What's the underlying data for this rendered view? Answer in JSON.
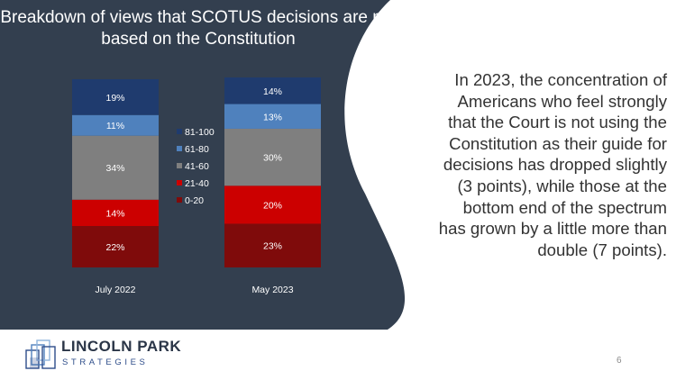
{
  "slide": {
    "title_lines": [
      "Breakdown of views that SCOTUS decisions are not",
      "based on the Constitution"
    ],
    "body_lines": [
      "In 2023, the concentration of",
      "Americans who feel strongly",
      "that the Court is not using the",
      "Constitution as their guide for",
      "decisions has dropped slightly",
      "(3 points), while those at the",
      "bottom end of the spectrum",
      "has grown by a little more than",
      "double (7 points)."
    ],
    "page_number": "6",
    "logo": {
      "name": "LINCOLN PARK",
      "sub": "STRATEGIES"
    },
    "colors": {
      "panel": "#333f4f",
      "text_white": "#ffffff",
      "body_text": "#333333"
    }
  },
  "chart_data": {
    "type": "stacked-bar",
    "title": "Breakdown of views that SCOTUS decisions are not based on the Constitution",
    "categories": [
      "July 2022",
      "May 2023"
    ],
    "series": [
      {
        "name": "0-20",
        "color": "#7f0b0b",
        "values": [
          22,
          23
        ]
      },
      {
        "name": "21-40",
        "color": "#cc0000",
        "values": [
          14,
          20
        ]
      },
      {
        "name": "41-60",
        "color": "#7f7f7f",
        "values": [
          34,
          30
        ]
      },
      {
        "name": "61-80",
        "color": "#4f81bd",
        "values": [
          11,
          13
        ]
      },
      {
        "name": "81-100",
        "color": "#1f3b6e",
        "values": [
          19,
          14
        ]
      }
    ],
    "legend_order": [
      "81-100",
      "61-80",
      "41-60",
      "21-40",
      "0-20"
    ],
    "label_suffix": "%",
    "ylim": [
      0,
      100
    ]
  }
}
